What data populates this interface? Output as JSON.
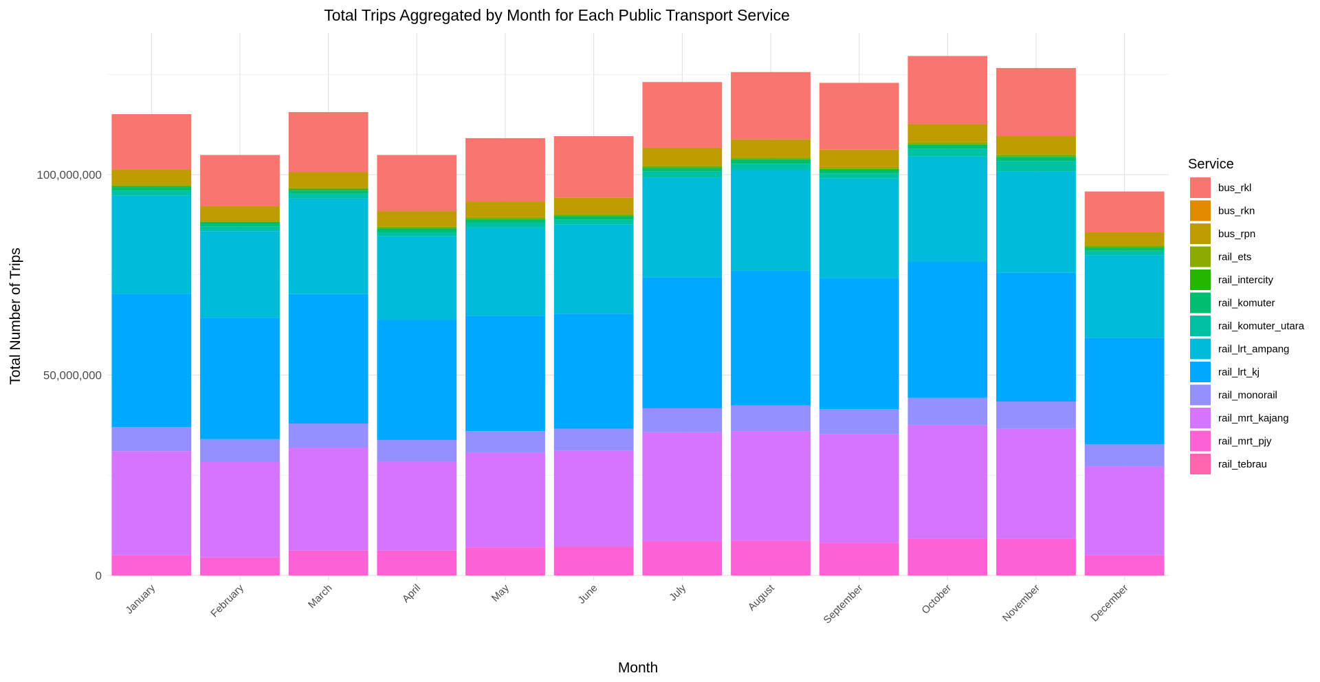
{
  "chart_data": {
    "type": "bar",
    "stacked": true,
    "title": "Total Trips Aggregated by Month for Each Public Transport Service",
    "xlabel": "Month",
    "ylabel": "Total Number of Trips",
    "ylim": [
      0,
      135000000
    ],
    "yticks": [
      0,
      50000000,
      100000000
    ],
    "ytick_labels": [
      "0",
      "50,000,000",
      "100,000,000"
    ],
    "grid": true,
    "legend_position": "right",
    "legend_title": "Service",
    "categories": [
      "January",
      "February",
      "March",
      "April",
      "May",
      "June",
      "July",
      "August",
      "September",
      "October",
      "November",
      "December"
    ],
    "series": [
      {
        "name": "rail_tebrau",
        "color": "#FF65AC",
        "values": [
          0,
          0,
          0,
          0,
          0,
          0,
          0,
          0,
          0,
          0,
          0,
          0
        ]
      },
      {
        "name": "rail_mrt_pjy",
        "color": "#FC61D5",
        "values": [
          5000000,
          4500000,
          6200000,
          6200000,
          7000000,
          7200000,
          8500000,
          8700000,
          8200000,
          9100000,
          9100000,
          5000000
        ]
      },
      {
        "name": "rail_mrt_kajang",
        "color": "#D575FE",
        "values": [
          26000000,
          23800000,
          25700000,
          22200000,
          23600000,
          23900000,
          27200000,
          27300000,
          27000000,
          28400000,
          27500000,
          22200000
        ]
      },
      {
        "name": "rail_monorail",
        "color": "#9590FF",
        "values": [
          6000000,
          5700000,
          6000000,
          5400000,
          5400000,
          5500000,
          6000000,
          6400000,
          6300000,
          6800000,
          6800000,
          5500000
        ]
      },
      {
        "name": "rail_lrt_kj",
        "color": "#00A9FF",
        "values": [
          33300000,
          30300000,
          32300000,
          30000000,
          28800000,
          28700000,
          32700000,
          33600000,
          32700000,
          34000000,
          32100000,
          26600000
        ]
      },
      {
        "name": "rail_lrt_ampang",
        "color": "#00BCD8",
        "values": [
          24500000,
          21600000,
          23900000,
          20800000,
          22000000,
          22300000,
          24900000,
          25200000,
          24800000,
          26200000,
          25300000,
          20600000
        ]
      },
      {
        "name": "rail_komuter_utara",
        "color": "#00C1A3",
        "values": [
          1200000,
          1200000,
          1200000,
          1000000,
          1200000,
          1200000,
          1500000,
          1500000,
          1300000,
          2000000,
          2600000,
          1100000
        ]
      },
      {
        "name": "rail_komuter",
        "color": "#00BE70",
        "values": [
          900000,
          900000,
          900000,
          900000,
          800000,
          800000,
          800000,
          1000000,
          900000,
          900000,
          1000000,
          700000
        ]
      },
      {
        "name": "rail_intercity",
        "color": "#24B700",
        "values": [
          200000,
          200000,
          200000,
          200000,
          200000,
          200000,
          200000,
          200000,
          200000,
          200000,
          200000,
          200000
        ]
      },
      {
        "name": "rail_ets",
        "color": "#8CAB00",
        "values": [
          400000,
          300000,
          400000,
          400000,
          400000,
          400000,
          500000,
          500000,
          500000,
          500000,
          500000,
          500000
        ]
      },
      {
        "name": "bus_rpn",
        "color": "#BE9C00",
        "values": [
          3800000,
          3600000,
          3800000,
          3800000,
          3900000,
          4000000,
          4400000,
          4400000,
          4300000,
          4500000,
          4500000,
          3200000
        ]
      },
      {
        "name": "bus_rkn",
        "color": "#E18A00",
        "values": [
          0,
          0,
          0,
          0,
          0,
          0,
          0,
          0,
          0,
          0,
          0,
          0
        ]
      },
      {
        "name": "bus_rkl",
        "color": "#F8766D",
        "values": [
          13800000,
          12800000,
          15000000,
          14000000,
          15800000,
          15400000,
          16400000,
          16800000,
          16700000,
          17000000,
          17000000,
          10200000
        ]
      }
    ]
  }
}
